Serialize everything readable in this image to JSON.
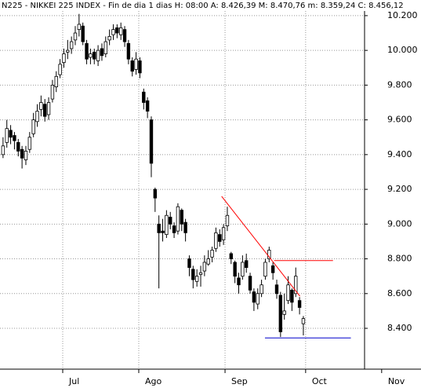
{
  "chart_data": {
    "type": "candlestick",
    "title": "N225 - NIKKEI 225 INDEX - Fin de dia 1 dias H: 08:00 A: 8.426,39 M: 8.470,76 m: 8.359,24 C: 8.456,12",
    "x": [
      0,
      1,
      2,
      3,
      4,
      5,
      6,
      7,
      8,
      9,
      10,
      11,
      12,
      13,
      14,
      15,
      16,
      17,
      18,
      19,
      20,
      21,
      22,
      23,
      24,
      25,
      26,
      27,
      28,
      29,
      30,
      31,
      32,
      33,
      34,
      35,
      36,
      37,
      38,
      39,
      40,
      41,
      42,
      43,
      44,
      45,
      46,
      47,
      48,
      49,
      50,
      51,
      52,
      53,
      54,
      55,
      56,
      57,
      58,
      59,
      60,
      61,
      62,
      63,
      64,
      65,
      66,
      67,
      68,
      69,
      70,
      71,
      72,
      73,
      74,
      75,
      76,
      77,
      78,
      79
    ],
    "open": [
      9400,
      9470,
      9540,
      9510,
      9470,
      9430,
      9370,
      9430,
      9520,
      9590,
      9660,
      9690,
      9630,
      9720,
      9790,
      9860,
      9930,
      9990,
      10010,
      10060,
      10120,
      10140,
      10040,
      9960,
      9990,
      9940,
      10010,
      9980,
      10060,
      10090,
      10130,
      10090,
      10120,
      10040,
      9940,
      9890,
      9940,
      9760,
      9710,
      9600,
      9200,
      9000,
      8960,
      8940,
      9040,
      8990,
      8960,
      9080,
      9010,
      8800,
      8740,
      8670,
      8710,
      8730,
      8770,
      8810,
      8860,
      8940,
      8910,
      8990,
      8830,
      8780,
      8690,
      8700,
      8790,
      8700,
      8610,
      8540,
      8600,
      8700,
      8800,
      8760,
      8650,
      8590,
      8480,
      8560,
      8620,
      8600,
      8560,
      8426.39
    ],
    "high": [
      9500,
      9600,
      9570,
      9530,
      9490,
      9450,
      9450,
      9530,
      9640,
      9690,
      9740,
      9720,
      9730,
      9830,
      9880,
      9950,
      10010,
      10060,
      10080,
      10140,
      10210,
      10160,
      10060,
      10010,
      10010,
      10030,
      10040,
      10080,
      10120,
      10150,
      10150,
      10160,
      10140,
      10060,
      9960,
      9990,
      9960,
      9780,
      9730,
      9620,
      9210,
      9050,
      9030,
      9080,
      9070,
      9010,
      9120,
      9090,
      9030,
      8820,
      8760,
      8740,
      8760,
      8820,
      8850,
      8870,
      8980,
      8970,
      9000,
      9100,
      8840,
      8790,
      8720,
      8820,
      8830,
      8720,
      8630,
      8630,
      8680,
      8800,
      8870,
      8780,
      8680,
      8610,
      8600,
      8700,
      8630,
      8750,
      8580,
      8470.76
    ],
    "low": [
      9380,
      9440,
      9460,
      9430,
      9390,
      9320,
      9340,
      9410,
      9500,
      9560,
      9620,
      9590,
      9600,
      9700,
      9760,
      9840,
      9900,
      9950,
      9980,
      10030,
      10080,
      10030,
      9920,
      9920,
      9920,
      9910,
      9940,
      9960,
      10030,
      10060,
      10070,
      10060,
      10020,
      9920,
      9850,
      9860,
      9840,
      9660,
      9610,
      9270,
      9070,
      8630,
      8900,
      8920,
      8970,
      8920,
      8940,
      8960,
      8900,
      8700,
      8630,
      8640,
      8640,
      8700,
      8760,
      8780,
      8840,
      8870,
      8880,
      8960,
      8770,
      8660,
      8600,
      8680,
      8720,
      8600,
      8500,
      8510,
      8580,
      8680,
      8780,
      8680,
      8570,
      8350,
      8450,
      8540,
      8500,
      8580,
      8480,
      8359.24
    ],
    "close": [
      9450,
      9550,
      9500,
      9480,
      9420,
      9380,
      9420,
      9500,
      9600,
      9650,
      9700,
      9620,
      9700,
      9800,
      9850,
      9920,
      9980,
      10000,
      10050,
      10100,
      10150,
      10050,
      9950,
      9980,
      9950,
      10000,
      9970,
      10050,
      10080,
      10120,
      10100,
      10130,
      10050,
      9950,
      9880,
      9950,
      9870,
      9700,
      9650,
      9350,
      9150,
      8950,
      8950,
      9050,
      9000,
      8950,
      9100,
      9000,
      8950,
      8750,
      8680,
      8700,
      8720,
      8780,
      8800,
      8850,
      8950,
      8900,
      8980,
      9050,
      8800,
      8700,
      8650,
      8780,
      8750,
      8620,
      8550,
      8600,
      8650,
      8780,
      8850,
      8720,
      8600,
      8380,
      8500,
      8650,
      8550,
      8700,
      8520,
      8456.12
    ],
    "up_color": "#ffffff",
    "down_color": "#000000",
    "ylim": [
      8165,
      10290
    ],
    "yticks": [
      {
        "value": 8400,
        "label": "8.400"
      },
      {
        "value": 8600,
        "label": "8.600"
      },
      {
        "value": 8800,
        "label": "8.800"
      },
      {
        "value": 9000,
        "label": "9.000"
      },
      {
        "value": 9200,
        "label": "9.200"
      },
      {
        "value": 9400,
        "label": "9.400"
      },
      {
        "value": 9600,
        "label": "9.600"
      },
      {
        "value": 9800,
        "label": "9.800"
      },
      {
        "value": 10000,
        "label": "10.000"
      },
      {
        "value": 10200,
        "label": "10.200"
      }
    ],
    "xlim": [
      -0.8,
      95.1
    ],
    "xticks": [
      {
        "value": 15.7,
        "label": "Jul"
      },
      {
        "value": 35.7,
        "label": "Ago"
      },
      {
        "value": 58.4,
        "label": "Sep"
      },
      {
        "value": 79.6,
        "label": "Oct"
      },
      {
        "value": 99.6,
        "label": "Nov"
      }
    ],
    "grid": true,
    "lines": [
      {
        "color": "#ff0000",
        "x": [
          57.5,
          78.1
        ],
        "y": [
          9160,
          8585
        ]
      },
      {
        "color": "#ff0000",
        "x": [
          71.3,
          86.8
        ],
        "y": [
          8790,
          8790
        ]
      },
      {
        "color": "#0000cc",
        "x": [
          68.9,
          91.5
        ],
        "y": [
          8345,
          8345
        ]
      }
    ]
  }
}
